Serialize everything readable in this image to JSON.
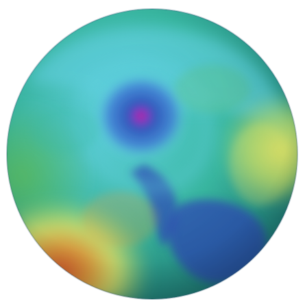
{
  "image": {
    "subject": "globe",
    "background_color": "#ffffff"
  },
  "palette": {
    "deep_blue": "#2e4fb8",
    "blue": "#3f7fd6",
    "cyan": "#5fd0e0",
    "teal": "#37b9a2",
    "green": "#5bbf62",
    "yellow_green": "#b9e06a",
    "yellow": "#f1f06a",
    "orange": "#f2a33a",
    "red_orange": "#e3552b",
    "magenta": "#d81b6a"
  }
}
